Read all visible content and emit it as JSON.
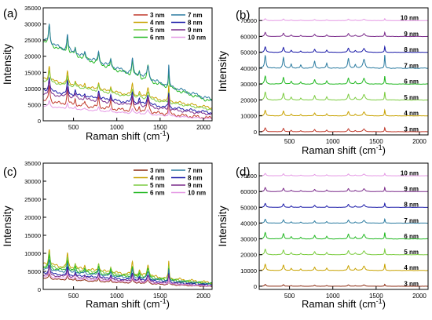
{
  "figure": {
    "xlabel": "Raman shift (cm",
    "xlabel_sup": "-1",
    "xlabel_close": ")",
    "ylabel": "Intensity"
  },
  "chart_data": [
    {
      "panel": "(a)",
      "type": "line",
      "xlim": [
        150,
        2100
      ],
      "ylim": [
        0,
        35000
      ],
      "xticks": [
        500,
        1000,
        1500,
        2000
      ],
      "yticks": [
        0,
        5000,
        10000,
        15000,
        20000,
        25000,
        30000,
        35000
      ],
      "xlabel": "Raman shift (cm-1)",
      "ylabel": "Intensity",
      "legend_position": "top-right",
      "legend_columns": 2,
      "peaks_cm-1": [
        220,
        430,
        520,
        630,
        790,
        930,
        1180,
        1260,
        1360,
        1600
      ],
      "series": [
        {
          "name": "3 nm",
          "color": "#c0392b",
          "baseline_start": 6000,
          "baseline_end": 800,
          "peak_amplitude": 5500
        },
        {
          "name": "4 nm",
          "color": "#c8a200",
          "baseline_start": 13000,
          "baseline_end": 4000,
          "peak_amplitude": 4500
        },
        {
          "name": "5 nm",
          "color": "#7ccc40",
          "baseline_start": 12500,
          "baseline_end": 3500,
          "peak_amplitude": 3500
        },
        {
          "name": "6 nm",
          "color": "#22b822",
          "baseline_start": 24500,
          "baseline_end": 6000,
          "peak_amplitude": 6000
        },
        {
          "name": "7 nm",
          "color": "#2b7ba0",
          "baseline_start": 25000,
          "baseline_end": 6500,
          "peak_amplitude": 6000
        },
        {
          "name": "8 nm",
          "color": "#1a1aa8",
          "baseline_start": 9500,
          "baseline_end": 2500,
          "peak_amplitude": 4500
        },
        {
          "name": "9 nm",
          "color": "#7a2a8a",
          "baseline_start": 8500,
          "baseline_end": 2000,
          "peak_amplitude": 4000
        },
        {
          "name": "10 nm",
          "color": "#e599e5",
          "baseline_start": 4500,
          "baseline_end": 600,
          "peak_amplitude": 2000
        }
      ]
    },
    {
      "panel": "(b)",
      "type": "line",
      "xlim": [
        150,
        2100
      ],
      "ylim": [
        -2000,
        78000
      ],
      "xticks": [
        500,
        1000,
        1500,
        2000
      ],
      "yticks": [
        0,
        10000,
        20000,
        30000,
        40000,
        50000,
        60000,
        70000
      ],
      "xlabel": "Raman shift (cm-1)",
      "ylabel": "Intensity",
      "labels_on_traces": true,
      "series": [
        {
          "name": "3 nm",
          "color": "#c0392b",
          "offset": 0,
          "peak_amplitude": 2500
        },
        {
          "name": "4 nm",
          "color": "#c8a200",
          "offset": 10000,
          "peak_amplitude": 3500
        },
        {
          "name": "5 nm",
          "color": "#7ccc40",
          "offset": 20000,
          "peak_amplitude": 5000
        },
        {
          "name": "6 nm",
          "color": "#22b822",
          "offset": 30000,
          "peak_amplitude": 5000
        },
        {
          "name": "7 nm",
          "color": "#2b7ba0",
          "offset": 40000,
          "peak_amplitude": 8000
        },
        {
          "name": "8 nm",
          "color": "#1a1aa8",
          "offset": 50000,
          "peak_amplitude": 3500
        },
        {
          "name": "9 nm",
          "color": "#7a2a8a",
          "offset": 60000,
          "peak_amplitude": 2500
        },
        {
          "name": "10 nm",
          "color": "#e599e5",
          "offset": 70000,
          "peak_amplitude": 1200
        }
      ]
    },
    {
      "panel": "(c)",
      "type": "line",
      "xlim": [
        150,
        2100
      ],
      "ylim": [
        0,
        35000
      ],
      "xticks": [
        500,
        1000,
        1500,
        2000
      ],
      "yticks": [
        0,
        5000,
        10000,
        15000,
        20000,
        25000,
        30000,
        35000
      ],
      "xlabel": "Raman shift (cm-1)",
      "ylabel": "Intensity",
      "legend_position": "top-right",
      "legend_columns": 2,
      "series": [
        {
          "name": "3 nm",
          "color": "#8b2a10",
          "baseline_start": 3000,
          "baseline_end": 800,
          "peak_amplitude": 1500
        },
        {
          "name": "4 nm",
          "color": "#c8a200",
          "baseline_start": 7000,
          "baseline_end": 1800,
          "peak_amplitude": 4500
        },
        {
          "name": "5 nm",
          "color": "#7ccc40",
          "baseline_start": 6500,
          "baseline_end": 1600,
          "peak_amplitude": 4000
        },
        {
          "name": "6 nm",
          "color": "#22b822",
          "baseline_start": 6000,
          "baseline_end": 1500,
          "peak_amplitude": 3500
        },
        {
          "name": "7 nm",
          "color": "#2b7ba0",
          "baseline_start": 5500,
          "baseline_end": 1400,
          "peak_amplitude": 3000
        },
        {
          "name": "8 nm",
          "color": "#1a1aa8",
          "baseline_start": 4500,
          "baseline_end": 1200,
          "peak_amplitude": 2500
        },
        {
          "name": "9 nm",
          "color": "#7a2a8a",
          "baseline_start": 4000,
          "baseline_end": 1000,
          "peak_amplitude": 2500
        },
        {
          "name": "10 nm",
          "color": "#e599e5",
          "baseline_start": 3500,
          "baseline_end": 900,
          "peak_amplitude": 1500
        }
      ]
    },
    {
      "panel": "(d)",
      "type": "line",
      "xlim": [
        150,
        2100
      ],
      "ylim": [
        -2000,
        78000
      ],
      "xticks": [
        500,
        1000,
        1500,
        2000
      ],
      "yticks": [
        0,
        10000,
        20000,
        30000,
        40000,
        50000,
        60000,
        70000
      ],
      "xlabel": "Raman shift (cm-1)",
      "ylabel": "Intensity",
      "labels_on_traces": true,
      "series": [
        {
          "name": "3 nm",
          "color": "#8b2a10",
          "offset": 0,
          "peak_amplitude": 1200
        },
        {
          "name": "4 nm",
          "color": "#c8a200",
          "offset": 10000,
          "peak_amplitude": 4000
        },
        {
          "name": "5 nm",
          "color": "#7ccc40",
          "offset": 20000,
          "peak_amplitude": 3500
        },
        {
          "name": "6 nm",
          "color": "#22b822",
          "offset": 30000,
          "peak_amplitude": 4000
        },
        {
          "name": "7 nm",
          "color": "#2b7ba0",
          "offset": 40000,
          "peak_amplitude": 2500
        },
        {
          "name": "8 nm",
          "color": "#1a1aa8",
          "offset": 50000,
          "peak_amplitude": 2500
        },
        {
          "name": "9 nm",
          "color": "#7a2a8a",
          "offset": 60000,
          "peak_amplitude": 2500
        },
        {
          "name": "10 nm",
          "color": "#e599e5",
          "offset": 70000,
          "peak_amplitude": 1500
        }
      ]
    }
  ]
}
